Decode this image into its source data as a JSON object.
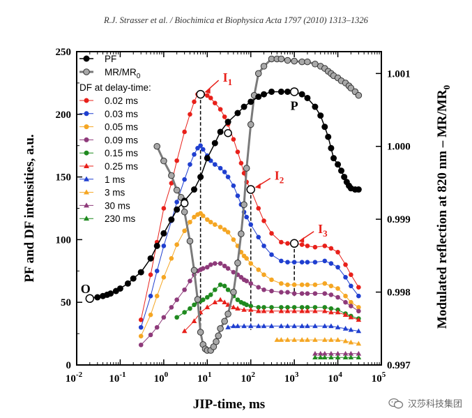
{
  "header": "R.J. Strasser et al. / Biochimica et Biophysica Acta 1797 (2010) 1313–1326",
  "watermark": "汉莎科技集团",
  "chart_data": {
    "type": "scatter",
    "xlabel": "JIP-time, ms",
    "ylabel_left": "PF and DF intensities, a.u.",
    "ylabel_right_main": "Modulated reflection at 820 nm – MR/MR",
    "ylabel_right_sub": "0",
    "x_scale": "log",
    "xlim": [
      0.01,
      100000
    ],
    "x_ticks": [
      {
        "base": "10",
        "exp": "-2"
      },
      {
        "base": "10",
        "exp": "-1"
      },
      {
        "base": "10",
        "exp": "0"
      },
      {
        "base": "10",
        "exp": "1"
      },
      {
        "base": "10",
        "exp": "2"
      },
      {
        "base": "10",
        "exp": "3"
      },
      {
        "base": "10",
        "exp": "4"
      },
      {
        "base": "10",
        "exp": "5"
      }
    ],
    "ylim_left": [
      0,
      250
    ],
    "y_ticks_left": [
      "0",
      "50",
      "100",
      "150",
      "200",
      "250"
    ],
    "ylim_right": [
      0.997,
      1.0013
    ],
    "y_ticks_right": [
      "0.997",
      "0.998",
      "0.999",
      "1.000",
      "1.001"
    ],
    "legend_heading": "DF at delay-time:",
    "legend_pf": "PF",
    "legend_mr_main": "MR/MR",
    "legend_mr_sub": "0",
    "points": [
      {
        "label": "O",
        "x": 0.02,
        "y": 53
      },
      {
        "label": "I",
        "sub": "1",
        "x": 7,
        "y": 216
      },
      {
        "label": "I",
        "sub": "2",
        "x": 100,
        "y": 140
      },
      {
        "label": "I",
        "sub": "3",
        "x": 1000,
        "y": 97
      },
      {
        "label": "P",
        "x": 1000,
        "y": 218
      }
    ],
    "pf": {
      "name": "PF",
      "color": "#000000",
      "x": [
        0.02,
        0.03,
        0.04,
        0.05,
        0.06,
        0.08,
        0.1,
        0.15,
        0.2,
        0.3,
        0.5,
        0.7,
        1,
        1.5,
        2,
        3,
        5,
        7,
        10,
        15,
        20,
        30,
        50,
        70,
        100,
        150,
        200,
        300,
        500,
        700,
        1000,
        1500,
        2000,
        3000,
        4000,
        5000,
        6000,
        7000,
        8000,
        10000,
        12000,
        14000,
        16000,
        18000,
        20000,
        25000,
        30000
      ],
      "y": [
        53,
        54,
        55,
        56,
        57,
        59,
        61,
        65,
        69,
        74,
        85,
        95,
        105,
        116,
        124,
        131,
        140,
        150,
        165,
        177,
        186,
        194,
        201,
        206,
        210,
        214,
        216,
        218,
        218,
        218,
        218,
        216,
        213,
        206,
        199,
        190,
        182,
        173,
        165,
        160,
        155,
        150,
        146,
        143,
        141,
        140,
        140
      ]
    },
    "mr": {
      "name": "MR/MR0",
      "color": "#999999",
      "x": [
        0.7,
        1,
        1.5,
        2,
        2.5,
        3,
        4,
        5,
        6,
        7,
        8,
        9,
        10,
        12,
        14,
        16,
        18,
        20,
        25,
        30,
        40,
        50,
        60,
        70,
        80,
        100,
        120,
        150,
        200,
        300,
        400,
        500,
        700,
        1000,
        1500,
        2000,
        3000,
        4000,
        5000,
        6000,
        7000,
        8000,
        10000,
        12000,
        15000,
        18000,
        20000,
        25000,
        30000
      ],
      "y": [
        1.0,
        0.9998,
        0.9996,
        0.9994,
        0.9993,
        0.9991,
        0.9987,
        0.9983,
        0.9979,
        0.99745,
        0.99728,
        0.99722,
        0.9972,
        0.9972,
        0.99725,
        0.99732,
        0.9974,
        0.9975,
        0.9976,
        0.9977,
        0.998,
        0.9984,
        0.9988,
        0.9992,
        0.9997,
        1.0003,
        1.0007,
        1.001,
        1.0011,
        1.0012,
        1.0012,
        1.0012,
        1.00118,
        1.00117,
        1.00116,
        1.00116,
        1.00113,
        1.0011,
        1.00107,
        1.00103,
        1.001,
        1.00097,
        1.00094,
        1.0009,
        1.00087,
        1.00083,
        1.0008,
        1.00075,
        1.0007
      ]
    },
    "df_series": [
      {
        "name": "0.02 ms",
        "color": "#e8201a",
        "marker": "circle",
        "x": [
          0.3,
          0.5,
          0.7,
          1,
          1.5,
          2,
          3,
          4,
          5,
          6,
          7,
          8,
          10,
          12,
          15,
          20,
          25,
          30,
          40,
          50,
          60,
          70,
          80,
          100,
          150,
          200,
          300,
          500,
          700,
          1000,
          1500,
          2000,
          3000,
          5000,
          7000,
          10000,
          15000,
          20000,
          30000
        ],
        "y": [
          36,
          72,
          98,
          125,
          145,
          163,
          186,
          200,
          210,
          216,
          216,
          216,
          215,
          213,
          209,
          204,
          198,
          192,
          180,
          170,
          161,
          153,
          146,
          140,
          125,
          115,
          105,
          98,
          97,
          97,
          96,
          95,
          94,
          95,
          93,
          90,
          80,
          72,
          62
        ]
      },
      {
        "name": "0.03 ms",
        "color": "#1f3fd0",
        "marker": "circle",
        "x": [
          0.3,
          0.5,
          0.7,
          1,
          1.5,
          2,
          3,
          4,
          5,
          6,
          7,
          8,
          10,
          12,
          15,
          20,
          25,
          30,
          40,
          50,
          60,
          70,
          80,
          100,
          150,
          200,
          300,
          500,
          700,
          1000,
          1500,
          2000,
          3000,
          5000,
          7000,
          10000,
          15000,
          20000,
          30000
        ],
        "y": [
          30,
          55,
          75,
          95,
          115,
          130,
          148,
          160,
          168,
          173,
          175,
          172,
          167,
          163,
          160,
          157,
          154,
          150,
          143,
          135,
          128,
          122,
          118,
          112,
          102,
          95,
          88,
          83,
          82,
          82,
          82,
          82,
          82,
          83,
          81,
          78,
          70,
          63,
          55
        ]
      },
      {
        "name": "0.05 ms",
        "color": "#f5a623",
        "marker": "circle",
        "x": [
          0.3,
          0.5,
          0.7,
          1,
          1.5,
          2,
          3,
          4,
          5,
          6,
          7,
          8,
          10,
          12,
          15,
          20,
          25,
          30,
          40,
          50,
          60,
          70,
          80,
          100,
          150,
          200,
          300,
          500,
          700,
          1000,
          1500,
          2000,
          3000,
          5000,
          7000,
          10000,
          15000,
          20000,
          30000
        ],
        "y": [
          23,
          40,
          55,
          70,
          85,
          96,
          107,
          114,
          118,
          120,
          121,
          119,
          116,
          114,
          112,
          110,
          108,
          106,
          100,
          95,
          90,
          87,
          85,
          81,
          76,
          72,
          68,
          65,
          64,
          64,
          64,
          64,
          64,
          65,
          63,
          61,
          55,
          50,
          46
        ]
      },
      {
        "name": "0.09 ms",
        "color": "#8e3a7a",
        "marker": "circle",
        "x": [
          0.3,
          0.5,
          0.7,
          1,
          1.5,
          2,
          3,
          4,
          5,
          6,
          7,
          8,
          10,
          12,
          15,
          20,
          25,
          30,
          40,
          50,
          60,
          70,
          80,
          100,
          150,
          200,
          300,
          500,
          700,
          1000,
          1500,
          2000,
          3000,
          5000,
          7000,
          10000,
          15000,
          20000,
          30000
        ],
        "y": [
          16,
          24,
          30,
          38,
          46,
          52,
          60,
          67,
          72,
          75,
          76,
          77,
          78,
          80,
          81,
          81,
          79,
          77,
          74,
          72,
          70,
          68,
          67,
          65,
          62,
          60,
          59,
          58,
          58,
          57,
          57,
          57,
          57,
          57,
          56,
          54,
          50,
          47,
          43
        ]
      },
      {
        "name": "0.15 ms",
        "color": "#1f8a1f",
        "marker": "circle",
        "x": [
          2,
          3,
          4,
          5,
          6,
          7,
          8,
          10,
          12,
          15,
          20,
          25,
          30,
          40,
          50,
          60,
          70,
          80,
          100,
          150,
          200,
          300,
          500,
          700,
          1000,
          1500,
          2000,
          3000,
          5000,
          7000,
          10000,
          15000,
          20000,
          30000
        ],
        "y": [
          38,
          42,
          45,
          48,
          50,
          51,
          52,
          54,
          56,
          60,
          64,
          63,
          60,
          55,
          52,
          50,
          49,
          48,
          47,
          46,
          46,
          46,
          46,
          46,
          46,
          46,
          46,
          46,
          46,
          45,
          44,
          41,
          39,
          37
        ]
      },
      {
        "name": "0.25 ms",
        "color": "#e8201a",
        "marker": "triangle",
        "x": [
          3,
          5,
          7,
          10,
          15,
          20,
          25,
          30,
          40,
          50,
          70,
          100,
          150,
          200,
          300,
          500,
          700,
          1000,
          1500,
          2000,
          3000,
          5000,
          7000,
          10000,
          15000,
          20000,
          30000
        ],
        "y": [
          27,
          35,
          42,
          46,
          50,
          52,
          50,
          48,
          46,
          45,
          44,
          44,
          43,
          43,
          43,
          43,
          43,
          43,
          43,
          43,
          43,
          43,
          42,
          42,
          40,
          38,
          36
        ]
      },
      {
        "name": "1 ms",
        "color": "#1f3fd0",
        "marker": "triangle",
        "x": [
          30,
          40,
          50,
          70,
          100,
          150,
          200,
          300,
          500,
          700,
          1000,
          1500,
          2000,
          3000,
          5000,
          7000,
          10000,
          15000,
          20000,
          30000
        ],
        "y": [
          30,
          31,
          31,
          31,
          31,
          31,
          31,
          31,
          31,
          31,
          31,
          31,
          31,
          31,
          31,
          31,
          30,
          29,
          28,
          27
        ]
      },
      {
        "name": "3 ms",
        "color": "#f5a623",
        "marker": "triangle",
        "x": [
          400,
          500,
          700,
          1000,
          1500,
          2000,
          3000,
          5000,
          7000,
          10000,
          15000,
          20000,
          30000
        ],
        "y": [
          20,
          20,
          20,
          20,
          20,
          20,
          20,
          20,
          20,
          20,
          19,
          18,
          17
        ]
      },
      {
        "name": "30 ms",
        "color": "#8e3a7a",
        "marker": "triangle",
        "x": [
          3000,
          4000,
          5000,
          7000,
          10000,
          15000,
          20000,
          30000
        ],
        "y": [
          9,
          9,
          9,
          9,
          9,
          9,
          9,
          9
        ]
      },
      {
        "name": "230 ms",
        "color": "#1f8a1f",
        "marker": "triangle",
        "x": [
          3000,
          4000,
          5000,
          7000,
          10000,
          15000,
          20000,
          30000
        ],
        "y": [
          6,
          6,
          6,
          6,
          6,
          6,
          6,
          6
        ]
      }
    ]
  }
}
